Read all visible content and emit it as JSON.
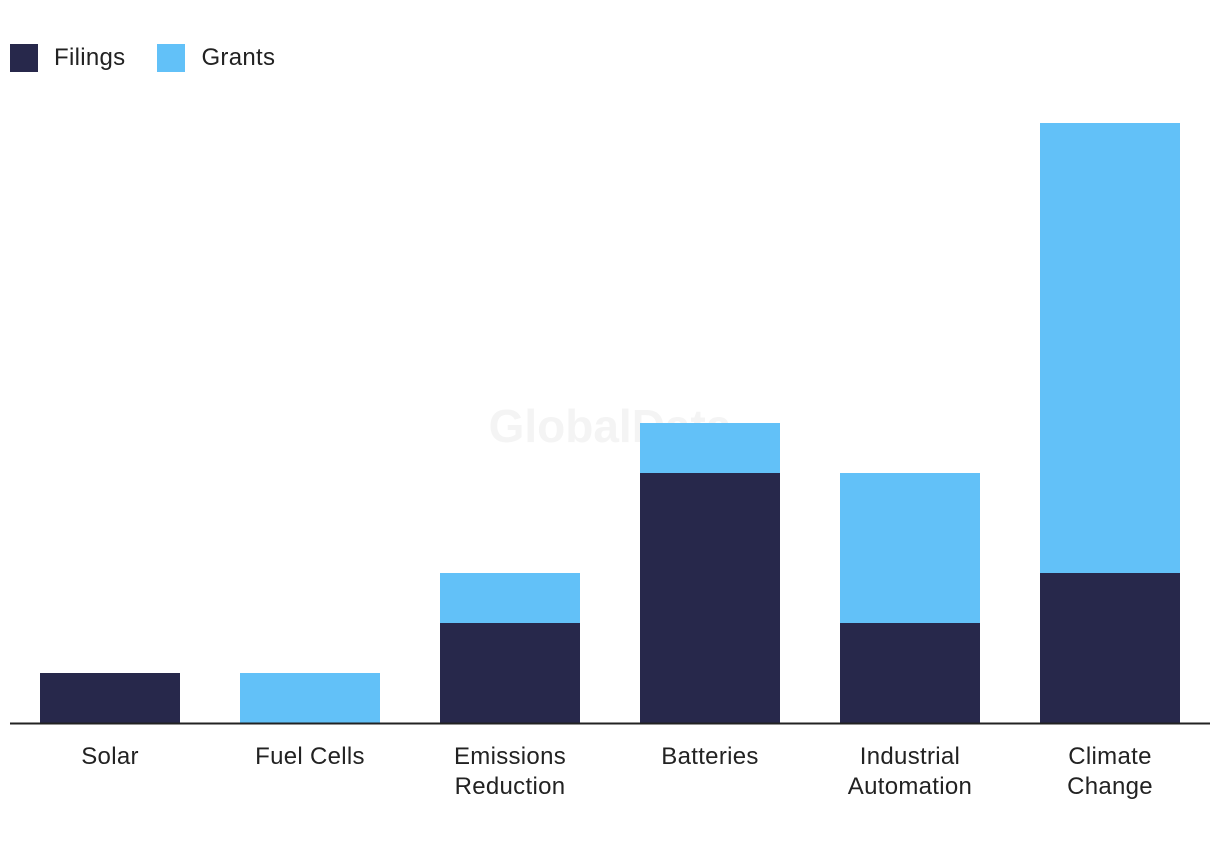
{
  "chart_data": {
    "type": "bar",
    "stacked": true,
    "categories": [
      [
        "Solar"
      ],
      [
        "Fuel Cells"
      ],
      [
        "Emissions",
        "Reduction"
      ],
      [
        "Batteries"
      ],
      [
        "Industrial",
        "Automation"
      ],
      [
        "Climate",
        "Change"
      ]
    ],
    "series": [
      {
        "name": "Filings",
        "color": "#27284b",
        "values": [
          1,
          0,
          2,
          5,
          2,
          3
        ]
      },
      {
        "name": "Grants",
        "color": "#62c1f8",
        "values": [
          0,
          1,
          1,
          1,
          3,
          9
        ]
      }
    ],
    "ylim": [
      0,
      12.5
    ],
    "grid": false,
    "legend": "top-left",
    "watermark": "GlobalData"
  }
}
